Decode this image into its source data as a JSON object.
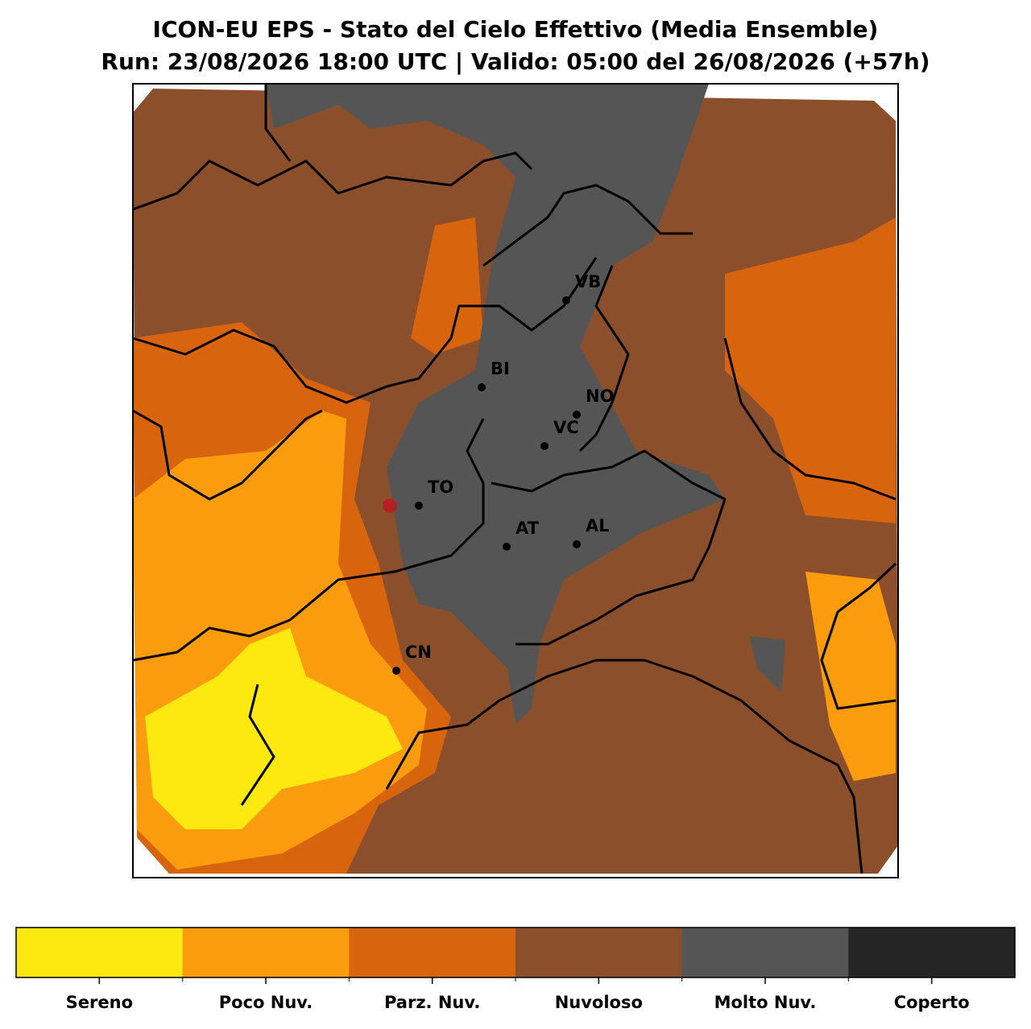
{
  "title": {
    "line1": "ICON-EU EPS - Stato del Cielo Effettivo (Media Ensemble)",
    "line2": "Run: 23/08/2026 18:00 UTC | Valido: 05:00 del 26/08/2026 (+57h)"
  },
  "cities": [
    {
      "label": "VB"
    },
    {
      "label": "BI"
    },
    {
      "label": "NO"
    },
    {
      "label": "VC"
    },
    {
      "label": "TO"
    },
    {
      "label": "AT"
    },
    {
      "label": "AL"
    },
    {
      "label": "CN"
    }
  ],
  "legend": {
    "categories": [
      {
        "label": "Sereno",
        "color": "#fde910"
      },
      {
        "label": "Poco Nuv.",
        "color": "#fb9c0f"
      },
      {
        "label": "Parz. Nuv.",
        "color": "#d9640e"
      },
      {
        "label": "Nuvoloso",
        "color": "#8b4f2c"
      },
      {
        "label": "Molto Nuv.",
        "color": "#555555"
      },
      {
        "label": "Coperto",
        "color": "#252525"
      }
    ]
  }
}
